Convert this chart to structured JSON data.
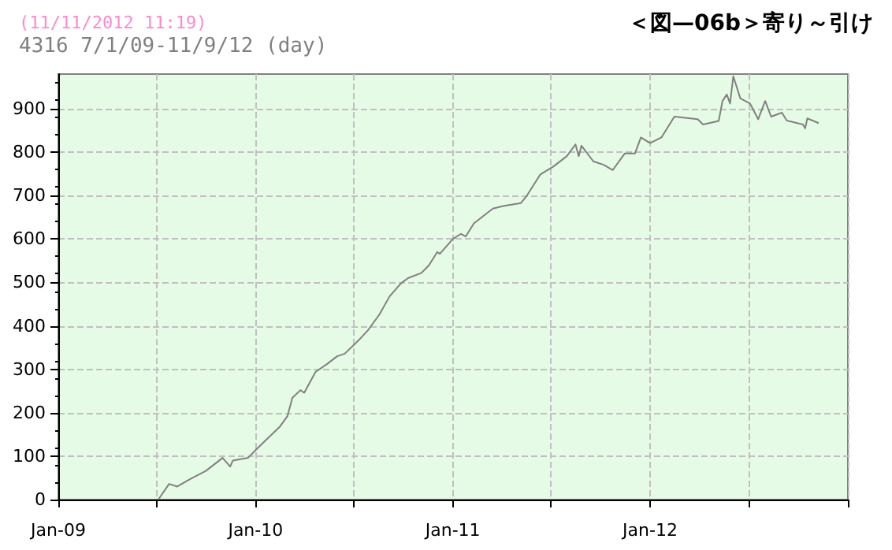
{
  "chart_data": {
    "type": "line",
    "title": "(11/11/2012 11:19)",
    "subtitle": "4316 7/1/09-11/9/12 (day)",
    "annotations": [
      "＜図—06b＞寄り～引け"
    ],
    "x": [
      "2009-07-05",
      "2009-07-25",
      "2009-08-09",
      "2009-09-03",
      "2009-10-01",
      "2009-11-01",
      "2009-11-15",
      "2009-11-20",
      "2009-12-18",
      "2010-01-01",
      "2010-01-16",
      "2010-02-15",
      "2010-03-01",
      "2010-03-10",
      "2010-03-25",
      "2010-04-01",
      "2010-04-22",
      "2010-05-13",
      "2010-06-01",
      "2010-06-15",
      "2010-07-10",
      "2010-07-28",
      "2010-08-18",
      "2010-09-06",
      "2010-09-27",
      "2010-10-10",
      "2010-11-04",
      "2010-11-18",
      "2010-12-03",
      "2010-12-08",
      "2011-01-01",
      "2011-01-16",
      "2011-01-25",
      "2011-02-09",
      "2011-03-16",
      "2011-04-04",
      "2011-05-07",
      "2011-05-18",
      "2011-06-12",
      "2011-07-06",
      "2011-07-31",
      "2011-08-16",
      "2011-08-22",
      "2011-08-27",
      "2011-09-18",
      "2011-10-07",
      "2011-10-24",
      "2011-11-15",
      "2011-12-04",
      "2011-12-15",
      "2012-01-01",
      "2012-01-22",
      "2012-02-15",
      "2012-03-29",
      "2012-04-08",
      "2012-05-07",
      "2012-05-14",
      "2012-05-22",
      "2012-05-28",
      "2012-06-03",
      "2012-06-16",
      "2012-07-04",
      "2012-07-19",
      "2012-08-01",
      "2012-08-12",
      "2012-09-01",
      "2012-09-10",
      "2012-10-10",
      "2012-10-14",
      "2012-10-18",
      "2012-11-08"
    ],
    "series": [
      {
        "color": "#808080",
        "values": [
          0,
          36,
          30,
          48,
          66,
          96,
          76,
          90,
          96,
          114,
          132,
          168,
          192,
          234,
          252,
          246,
          294,
          312,
          330,
          336,
          366,
          390,
          426,
          468,
          498,
          510,
          522,
          540,
          570,
          566,
          600,
          612,
          606,
          636,
          670,
          676,
          683,
          700,
          749,
          767,
          791,
          818,
          791,
          815,
          779,
          771,
          759,
          797,
          797,
          834,
          821,
          834,
          882,
          876,
          864,
          872,
          918,
          933,
          912,
          975,
          924,
          912,
          876,
          918,
          882,
          891,
          873,
          864,
          855,
          878,
          867
        ]
      }
    ],
    "xlim": [
      "2009-01-01",
      "2013-01-01"
    ],
    "xticks": [
      {
        "value": "2009-01-01",
        "label": "Jan-09"
      },
      {
        "value": "2009-07-01",
        "label": null
      },
      {
        "value": "2010-01-01",
        "label": "Jan-10"
      },
      {
        "value": "2010-07-01",
        "label": null
      },
      {
        "value": "2011-01-01",
        "label": "Jan-11"
      },
      {
        "value": "2011-07-01",
        "label": null
      },
      {
        "value": "2012-01-01",
        "label": "Jan-12"
      },
      {
        "value": "2012-07-01",
        "label": null
      },
      {
        "value": "2013-01-01",
        "label": null
      }
    ],
    "ylim": [
      0,
      980
    ],
    "yticks": [
      0,
      100,
      200,
      300,
      400,
      500,
      600,
      700,
      800,
      900
    ],
    "grid": true,
    "marker": "none",
    "line_style": "solid"
  }
}
